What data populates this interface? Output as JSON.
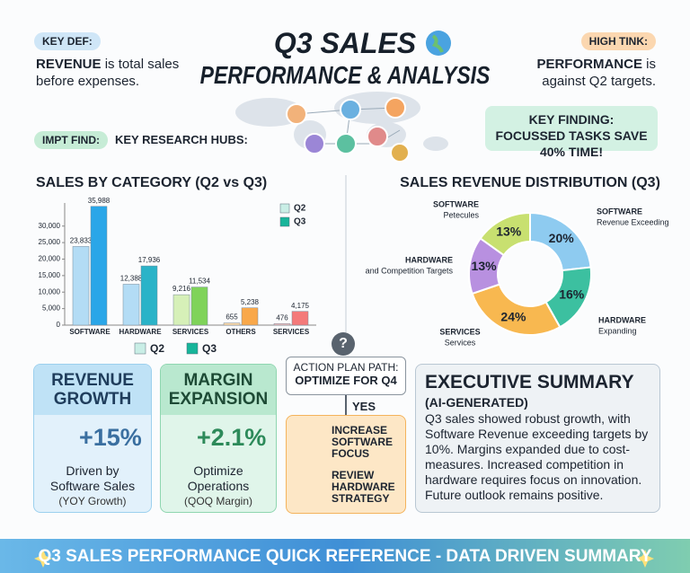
{
  "header": {
    "key_def": {
      "badge": "KEY DEF:",
      "term": "REVENUE",
      "text": "is total sales before expenses."
    },
    "high_tink": {
      "badge": "HIGH TINK:",
      "term": "PERFORMANCE",
      "text": "is against Q2 targets."
    },
    "title": {
      "line1": "Q3 SALES",
      "line2": "PERFORMANCE & ANALYSIS"
    },
    "impt_find": {
      "badge": "IMPT FIND:",
      "text": "KEY RESEARCH HUBS:"
    },
    "key_finding": "KEY FINDING: FOCUSSED TASKS SAVE 40% TIME!"
  },
  "chart_data": [
    {
      "type": "bar",
      "title": "SALES BY CATEGORY (Q2 vs Q3)",
      "categories": [
        "SOFTWARE",
        "HARDWARE",
        "SERVICES",
        "OTHERS",
        "SERVICES"
      ],
      "series": [
        {
          "name": "Q2",
          "color": "#c9eee6",
          "colors": [
            "#b3dcf5",
            "#b3dcf5",
            "#d6f0b8",
            "#fcd9a8",
            "#f8c3c3"
          ],
          "values": [
            23833,
            12388,
            9216,
            655,
            476
          ],
          "value_labels": [
            "23,833",
            "12,388",
            "9,216",
            "655",
            "476"
          ]
        },
        {
          "name": "Q3",
          "color": "#17b59a",
          "colors": [
            "#2aa6e8",
            "#2ab3c8",
            "#7fd35a",
            "#f9a84a",
            "#f47a7a"
          ],
          "values": [
            35988,
            17936,
            11534,
            5238,
            4175
          ],
          "value_labels": [
            "35,988",
            "17,936",
            "11,534",
            "5,238",
            "4,175"
          ]
        }
      ],
      "ylim": [
        0,
        37000
      ],
      "yticks": [
        0,
        {
          "value": 5000,
          "label": "5,000"
        },
        {
          "value": 10000,
          "label": "10,000"
        },
        {
          "value": 15000,
          "label": "15,000"
        },
        {
          "value": 20000,
          "label": "20,000"
        },
        {
          "value": 25000,
          "label": "25,000"
        },
        {
          "value": 30000,
          "label": "30,000"
        }
      ],
      "grid": false
    },
    {
      "type": "pie",
      "title": "SALES REVENUE DISTRIBUTION (Q3)",
      "categories": [
        "SOFTWARE",
        "HARDWARE",
        "SERVICES",
        "HARDWARE",
        "SOFTWARE"
      ],
      "sublabels": [
        "Revenue Exceeding",
        "Expanding",
        "Services",
        "and Competition Targets",
        "Petecules"
      ],
      "values": [
        20,
        16,
        24,
        13,
        13
      ],
      "value_labels": [
        "20%",
        "16%",
        "24%",
        "13%",
        "13%"
      ],
      "colors": [
        "#8ecbf0",
        "#3cc0a0",
        "#f8b850",
        "#b890e0",
        "#c8e070"
      ],
      "donut": true
    }
  ],
  "cards": {
    "revenue": {
      "title": "REVENUE GROWTH",
      "value": "+15%",
      "text": "Driven by Software Sales",
      "note": "(YOY Growth)"
    },
    "margin": {
      "title": "MARGIN EXPANSION",
      "value": "+2.1%",
      "text": "Optimize Operations",
      "note": "(QOQ Margin)"
    }
  },
  "action_plan": {
    "icon": "?",
    "label": "ACTION PLAN PATH:",
    "goal": "OPTIMIZE FOR Q4",
    "answer": "YES",
    "items": [
      "INCREASE SOFTWARE FOCUS",
      "REVIEW HARDWARE STRATEGY"
    ]
  },
  "summary": {
    "title": "EXECUTIVE SUMMARY",
    "subtitle": "(AI-GENERATED)",
    "text": "Q3 sales showed robust growth, with Software Revenue exceeding targets by 10%. Margins expanded due to cost-measures. Increased competition in hardware requires focus on innovation. Future outlook remains positive."
  },
  "footer": "Q3 SALES PERFORMANCE QUICK REFERENCE - DATA DRIVEN SUMMARY"
}
